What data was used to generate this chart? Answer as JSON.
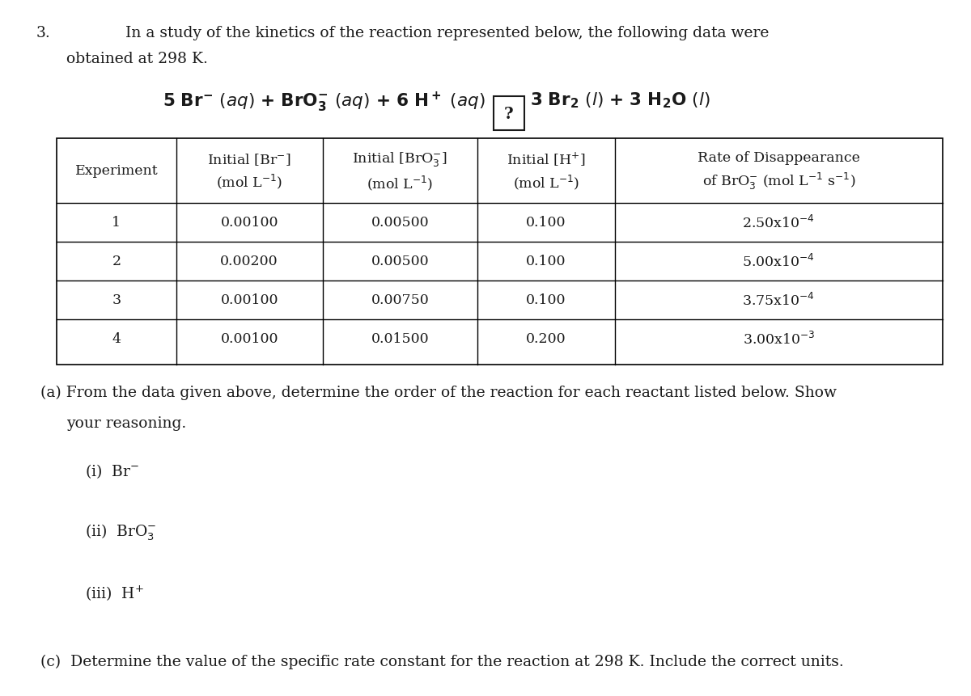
{
  "background_color": "#ffffff",
  "fig_width": 12.0,
  "fig_height": 8.62,
  "text_color": "#1a1a1a",
  "font_size_body": 13.5,
  "font_size_equation": 15.5,
  "font_size_table": 12.5,
  "problem_number": "3.",
  "intro_line1": "In a study of the kinetics of the reaction represented below, the following data were",
  "intro_line2": "obtained at 298 K.",
  "rate_labels": [
    "2.50x10$^{-4}$",
    "5.00x10$^{-4}$",
    "3.75x10$^{-4}$",
    "3.00x10$^{-3}$"
  ],
  "table_data_rows": [
    [
      "1",
      "0.00100",
      "0.00500",
      "0.100"
    ],
    [
      "2",
      "0.00200",
      "0.00500",
      "0.100"
    ],
    [
      "3",
      "0.00100",
      "0.00750",
      "0.100"
    ],
    [
      "4",
      "0.00100",
      "0.01500",
      "0.200"
    ]
  ]
}
